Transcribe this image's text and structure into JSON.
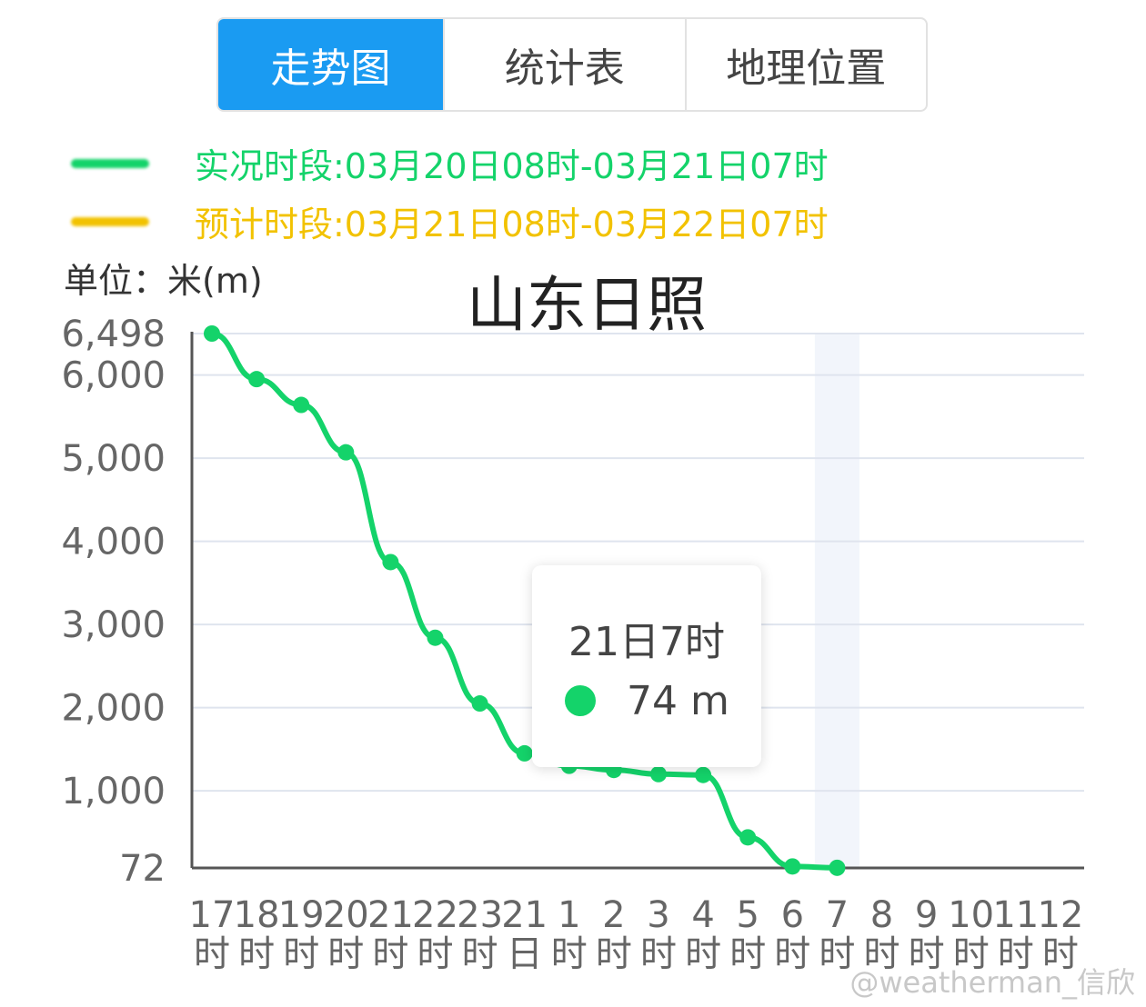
{
  "tabs": [
    "走势图",
    "统计表",
    "地理位置"
  ],
  "unit": "单位：米(m)",
  "tooltip": {
    "title": "21日7时",
    "label": "74 m"
  },
  "watermark": "@weatherman_信欣",
  "chart_data": {
    "type": "line",
    "title": "山东日照",
    "categories": [
      "17时",
      "18时",
      "19时",
      "20时",
      "21时",
      "22时",
      "23时",
      "21日",
      "1时",
      "2时",
      "3时",
      "4时",
      "5时",
      "6时",
      "7时",
      "8时",
      "9时",
      "10时",
      "11时",
      "12时"
    ],
    "series": [
      {
        "name": "实况时段:03月20日08时-03月21日07时",
        "color": "#14d36a",
        "values": [
          6498,
          5950,
          5640,
          5070,
          3750,
          2840,
          2050,
          1450,
          1300,
          1250,
          1200,
          1190,
          440,
          90,
          74,
          null,
          null,
          null,
          null,
          null
        ]
      },
      {
        "name": "预计时段:03月21日08时-03月22日07时",
        "color": "#f2c200",
        "values": [
          null,
          null,
          null,
          null,
          null,
          null,
          null,
          null,
          null,
          null,
          null,
          null,
          null,
          null,
          null,
          null,
          null,
          null,
          null,
          null
        ]
      }
    ],
    "ylim": [
      72,
      6498
    ],
    "yticks": [
      72,
      {
        "value": 1000,
        "label": "1,000"
      },
      {
        "value": 2000,
        "label": "2,000"
      },
      {
        "value": 3000,
        "label": "3,000"
      },
      {
        "value": 4000,
        "label": "4,000"
      },
      {
        "value": 5000,
        "label": "5,000"
      },
      {
        "value": 6000,
        "label": "6,000"
      },
      {
        "value": 6498,
        "label": "6,498"
      }
    ],
    "grid": true,
    "highlight_index": 14
  }
}
